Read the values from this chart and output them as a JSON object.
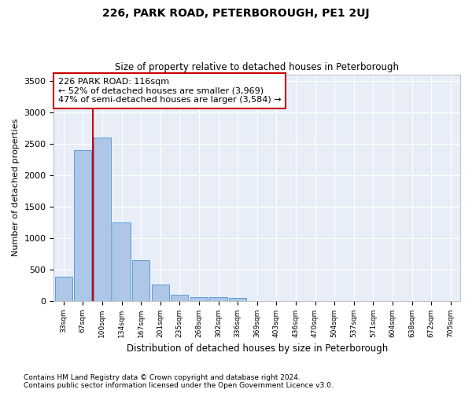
{
  "title": "226, PARK ROAD, PETERBOROUGH, PE1 2UJ",
  "subtitle": "Size of property relative to detached houses in Peterborough",
  "xlabel": "Distribution of detached houses by size in Peterborough",
  "ylabel": "Number of detached properties",
  "footnote1": "Contains HM Land Registry data © Crown copyright and database right 2024.",
  "footnote2": "Contains public sector information licensed under the Open Government Licence v3.0.",
  "categories": [
    "33sqm",
    "67sqm",
    "100sqm",
    "134sqm",
    "167sqm",
    "201sqm",
    "235sqm",
    "268sqm",
    "302sqm",
    "336sqm",
    "369sqm",
    "403sqm",
    "436sqm",
    "470sqm",
    "504sqm",
    "537sqm",
    "571sqm",
    "604sqm",
    "638sqm",
    "672sqm",
    "705sqm"
  ],
  "values": [
    380,
    2390,
    2600,
    1250,
    650,
    260,
    95,
    60,
    55,
    40,
    0,
    0,
    0,
    0,
    0,
    0,
    0,
    0,
    0,
    0,
    0
  ],
  "bar_color": "#aec6e8",
  "bar_edge_color": "#5a9fd4",
  "background_color": "#e8eef8",
  "grid_color": "#ffffff",
  "annotation_line1": "226 PARK ROAD: 116sqm",
  "annotation_line2": "← 52% of detached houses are smaller (3,969)",
  "annotation_line3": "47% of semi-detached houses are larger (3,584) →",
  "annotation_box_color": "#ffffff",
  "annotation_box_edge": "#cc0000",
  "red_line_color": "#cc0000",
  "red_line_xindex": 2,
  "ylim": [
    0,
    3600
  ],
  "yticks": [
    0,
    500,
    1000,
    1500,
    2000,
    2500,
    3000,
    3500
  ]
}
